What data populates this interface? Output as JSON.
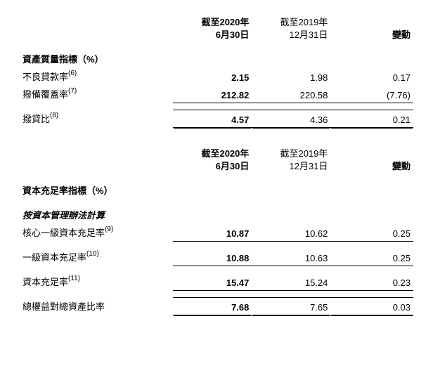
{
  "header1": {
    "col1_l1": "截至2020年",
    "col1_l2": "6月30日",
    "col2_l1": "截至2019年",
    "col2_l2": "12月31日",
    "col3": "變動"
  },
  "section1": {
    "title": "資產質量指標（%）",
    "row1": {
      "label": "不良貸款率",
      "note": "(6)",
      "v1": "2.15",
      "v2": "1.98",
      "v3": "0.17"
    },
    "row2": {
      "label": "撥備覆蓋率",
      "note": "(7)",
      "v1": "212.82",
      "v2": "220.58",
      "v3": "(7.76)"
    },
    "row3": {
      "label": "撥貸比",
      "note": "(8)",
      "v1": "4.57",
      "v2": "4.36",
      "v3": "0.21"
    }
  },
  "header2": {
    "col1_l1": "截至2020年",
    "col1_l2": "6月30日",
    "col2_l1": "截至2019年",
    "col2_l2": "12月31日",
    "col3": "變動"
  },
  "section2": {
    "title": "資本充足率指標（%）",
    "subheading": "按資本管理辦法計算",
    "row1": {
      "label": "核心一級資本充足率",
      "note": "(9)",
      "v1": "10.87",
      "v2": "10.62",
      "v3": "0.25"
    },
    "row2": {
      "label": "一級資本充足率",
      "note": "(10)",
      "v1": "10.88",
      "v2": "10.63",
      "v3": "0.25"
    },
    "row3": {
      "label": "資本充足率",
      "note": "(11)",
      "v1": "15.47",
      "v2": "15.24",
      "v3": "0.23"
    },
    "row4": {
      "label": "總權益對總資產比率",
      "note": "",
      "v1": "7.68",
      "v2": "7.65",
      "v3": "0.03"
    }
  }
}
